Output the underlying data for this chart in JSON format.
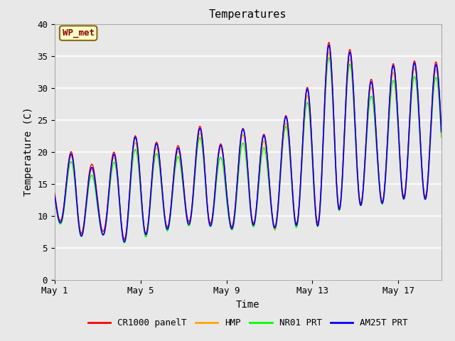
{
  "title": "Temperatures",
  "xlabel": "Time",
  "ylabel": "Temperature (C)",
  "ylim": [
    0,
    40
  ],
  "bg_color": "#e8e8e8",
  "fig_facecolor": "#e8e8e8",
  "legend_labels": [
    "CR1000 panelT",
    "HMP",
    "NR01 PRT",
    "AM25T PRT"
  ],
  "legend_colors": [
    "red",
    "orange",
    "lime",
    "blue"
  ],
  "annotation_text": "WP_met",
  "annotation_bg": "#ffffcc",
  "annotation_border": "#8b6914",
  "xtick_labels": [
    "May 1",
    "May 5",
    "May 9",
    "May 13",
    "May 17"
  ],
  "xtick_positions": [
    0,
    4,
    8,
    12,
    16
  ],
  "ytick_labels": [
    "0",
    "5",
    "10",
    "15",
    "20",
    "25",
    "30",
    "35",
    "40"
  ],
  "ytick_positions": [
    0,
    5,
    10,
    15,
    20,
    25,
    30,
    35,
    40
  ],
  "grid_color": "white",
  "spine_color": "#aaaaaa"
}
